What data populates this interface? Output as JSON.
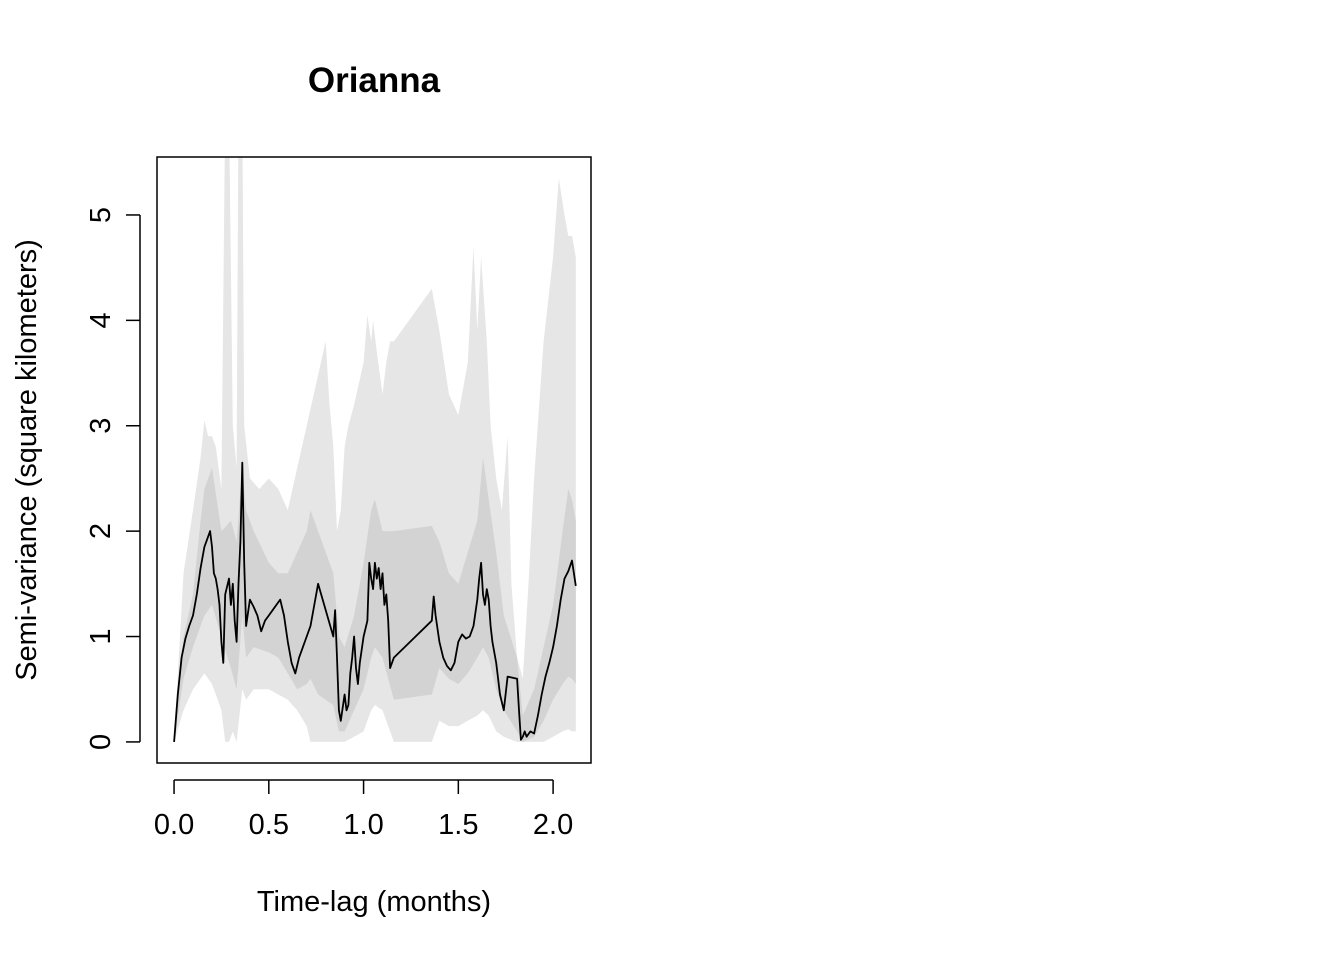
{
  "chart_data": {
    "type": "line",
    "title": "Orianna",
    "xlabel": "Time-lag (months)",
    "ylabel": "Semi-variance (square kilometers)",
    "xlim": [
      -0.09,
      2.2
    ],
    "ylim": [
      -0.2,
      5.55
    ],
    "x_ticks": [
      0.0,
      0.5,
      1.0,
      1.5,
      2.0
    ],
    "x_tick_labels": [
      "0.0",
      "0.5",
      "1.0",
      "1.5",
      "2.0"
    ],
    "y_ticks": [
      0,
      1,
      2,
      3,
      4,
      5
    ],
    "y_tick_labels": [
      "0",
      "1",
      "2",
      "3",
      "4",
      "5"
    ],
    "grid": false,
    "legend": "none",
    "colors": {
      "line": "#000000",
      "inner_band": "#d3d3d3",
      "outer_band": "#e6e6e6",
      "axes": "#000000"
    },
    "series": [
      {
        "role": "estimate",
        "x": [
          0.0,
          0.02,
          0.04,
          0.06,
          0.08,
          0.1,
          0.12,
          0.14,
          0.16,
          0.18,
          0.19,
          0.2,
          0.21,
          0.22,
          0.23,
          0.24,
          0.25,
          0.26,
          0.27,
          0.29,
          0.3,
          0.31,
          0.32,
          0.33,
          0.34,
          0.35,
          0.36,
          0.37,
          0.38,
          0.4,
          0.42,
          0.44,
          0.46,
          0.48,
          0.5,
          0.52,
          0.54,
          0.56,
          0.58,
          0.6,
          0.62,
          0.64,
          0.66,
          0.68,
          0.7,
          0.72,
          0.74,
          0.76,
          0.84,
          0.85,
          0.86,
          0.87,
          0.88,
          0.9,
          0.91,
          0.92,
          0.93,
          0.94,
          0.95,
          0.96,
          0.97,
          0.98,
          1.0,
          1.02,
          1.03,
          1.04,
          1.05,
          1.06,
          1.07,
          1.08,
          1.09,
          1.1,
          1.11,
          1.12,
          1.13,
          1.14,
          1.16,
          1.36,
          1.37,
          1.38,
          1.4,
          1.42,
          1.44,
          1.46,
          1.48,
          1.5,
          1.52,
          1.54,
          1.56,
          1.58,
          1.6,
          1.61,
          1.62,
          1.63,
          1.64,
          1.65,
          1.66,
          1.67,
          1.68,
          1.7,
          1.72,
          1.74,
          1.76,
          1.81,
          1.82,
          1.83,
          1.84,
          1.85,
          1.86,
          1.88,
          1.9,
          1.92,
          1.94,
          1.96,
          1.98,
          2.0,
          2.02,
          2.04,
          2.06,
          2.08,
          2.1,
          2.12
        ],
        "y": [
          0.0,
          0.45,
          0.8,
          0.98,
          1.1,
          1.2,
          1.4,
          1.65,
          1.85,
          1.95,
          2.0,
          1.85,
          1.6,
          1.55,
          1.45,
          1.3,
          0.95,
          0.75,
          1.4,
          1.55,
          1.3,
          1.5,
          1.15,
          0.95,
          1.5,
          1.9,
          2.65,
          1.7,
          1.1,
          1.35,
          1.28,
          1.2,
          1.05,
          1.15,
          1.2,
          1.25,
          1.3,
          1.35,
          1.2,
          0.95,
          0.75,
          0.65,
          0.8,
          0.9,
          1.0,
          1.1,
          1.3,
          1.5,
          1.0,
          1.25,
          0.8,
          0.3,
          0.2,
          0.45,
          0.3,
          0.35,
          0.65,
          0.8,
          1.0,
          0.7,
          0.55,
          0.75,
          1.0,
          1.15,
          1.7,
          1.55,
          1.45,
          1.7,
          1.55,
          1.65,
          1.45,
          1.6,
          1.3,
          1.4,
          1.15,
          0.7,
          0.8,
          1.15,
          1.38,
          1.2,
          0.95,
          0.8,
          0.72,
          0.68,
          0.75,
          0.95,
          1.02,
          0.98,
          1.0,
          1.1,
          1.35,
          1.55,
          1.7,
          1.4,
          1.3,
          1.45,
          1.35,
          1.1,
          0.95,
          0.75,
          0.45,
          0.3,
          0.62,
          0.6,
          0.3,
          0.02,
          0.05,
          0.1,
          0.05,
          0.1,
          0.08,
          0.25,
          0.45,
          0.62,
          0.75,
          0.9,
          1.1,
          1.35,
          1.55,
          1.62,
          1.72,
          1.48
        ]
      },
      {
        "role": "inner_band_upper",
        "x": [
          0.0,
          0.05,
          0.1,
          0.14,
          0.16,
          0.2,
          0.25,
          0.3,
          0.33,
          0.36,
          0.38,
          0.42,
          0.5,
          0.55,
          0.6,
          0.65,
          0.7,
          0.72,
          0.76,
          0.84,
          0.87,
          0.9,
          0.95,
          1.0,
          1.04,
          1.06,
          1.1,
          1.16,
          1.36,
          1.4,
          1.45,
          1.5,
          1.55,
          1.6,
          1.63,
          1.66,
          1.7,
          1.74,
          1.81,
          1.84,
          1.9,
          1.95,
          2.0,
          2.05,
          2.08,
          2.1,
          2.12
        ],
        "y": [
          0.0,
          1.0,
          1.4,
          2.1,
          2.4,
          2.6,
          2.0,
          2.1,
          1.9,
          2.6,
          2.2,
          2.0,
          1.7,
          1.6,
          1.6,
          1.8,
          2.0,
          2.2,
          2.0,
          1.6,
          1.0,
          0.9,
          1.2,
          1.7,
          2.2,
          2.3,
          2.0,
          2.0,
          2.05,
          1.9,
          1.6,
          1.5,
          1.8,
          2.1,
          2.7,
          2.3,
          1.8,
          1.2,
          0.8,
          0.25,
          0.5,
          0.9,
          1.3,
          2.0,
          2.4,
          2.3,
          2.1
        ]
      },
      {
        "role": "inner_band_lower",
        "x": [
          0.0,
          0.05,
          0.1,
          0.14,
          0.16,
          0.2,
          0.25,
          0.3,
          0.33,
          0.36,
          0.38,
          0.42,
          0.5,
          0.55,
          0.6,
          0.65,
          0.7,
          0.72,
          0.76,
          0.84,
          0.87,
          0.9,
          0.95,
          1.0,
          1.04,
          1.06,
          1.1,
          1.16,
          1.36,
          1.4,
          1.45,
          1.5,
          1.55,
          1.6,
          1.63,
          1.66,
          1.7,
          1.74,
          1.81,
          1.84,
          1.9,
          1.95,
          2.0,
          2.05,
          2.08,
          2.1,
          2.12
        ],
        "y": [
          0.0,
          0.6,
          0.9,
          1.1,
          1.2,
          1.3,
          1.0,
          0.7,
          0.5,
          1.2,
          0.8,
          0.9,
          0.85,
          0.8,
          0.65,
          0.5,
          0.55,
          0.6,
          0.45,
          0.35,
          0.1,
          0.1,
          0.3,
          0.5,
          0.8,
          0.9,
          0.8,
          0.4,
          0.45,
          0.7,
          0.6,
          0.55,
          0.65,
          0.8,
          0.9,
          0.8,
          0.5,
          0.3,
          0.1,
          0.0,
          0.05,
          0.2,
          0.4,
          0.55,
          0.62,
          0.6,
          0.55
        ]
      },
      {
        "role": "outer_band_upper",
        "x": [
          0.0,
          0.05,
          0.1,
          0.14,
          0.16,
          0.18,
          0.2,
          0.22,
          0.25,
          0.27,
          0.29,
          0.31,
          0.33,
          0.34,
          0.36,
          0.37,
          0.4,
          0.45,
          0.5,
          0.55,
          0.6,
          0.65,
          0.7,
          0.75,
          0.8,
          0.82,
          0.84,
          0.86,
          0.88,
          0.9,
          0.92,
          0.95,
          1.0,
          1.02,
          1.04,
          1.05,
          1.07,
          1.1,
          1.12,
          1.14,
          1.16,
          1.36,
          1.4,
          1.45,
          1.5,
          1.55,
          1.58,
          1.6,
          1.62,
          1.65,
          1.67,
          1.7,
          1.73,
          1.76,
          1.78,
          1.81,
          1.84,
          1.87,
          1.9,
          1.95,
          2.0,
          2.03,
          2.06,
          2.08,
          2.1,
          2.12
        ],
        "y": [
          0.0,
          1.6,
          2.2,
          2.7,
          3.05,
          2.9,
          2.9,
          2.8,
          2.4,
          6.0,
          6.0,
          3.0,
          2.6,
          6.0,
          6.0,
          3.0,
          2.5,
          2.4,
          2.5,
          2.4,
          2.2,
          2.6,
          3.0,
          3.4,
          3.8,
          3.2,
          2.8,
          2.0,
          2.2,
          2.8,
          3.0,
          3.2,
          3.6,
          4.05,
          3.8,
          4.0,
          3.7,
          3.3,
          3.6,
          3.8,
          3.8,
          4.3,
          3.9,
          3.3,
          3.1,
          3.6,
          4.7,
          3.9,
          4.6,
          3.8,
          3.0,
          2.5,
          2.2,
          2.9,
          1.5,
          0.8,
          0.6,
          1.5,
          2.5,
          3.8,
          4.6,
          5.35,
          5.0,
          4.8,
          4.8,
          4.6
        ]
      },
      {
        "role": "outer_band_lower",
        "x": [
          0.0,
          0.05,
          0.1,
          0.14,
          0.16,
          0.2,
          0.25,
          0.27,
          0.29,
          0.31,
          0.33,
          0.36,
          0.38,
          0.42,
          0.5,
          0.55,
          0.6,
          0.65,
          0.7,
          0.72,
          0.76,
          0.84,
          0.87,
          0.9,
          0.95,
          1.0,
          1.04,
          1.06,
          1.1,
          1.16,
          1.36,
          1.4,
          1.45,
          1.5,
          1.55,
          1.6,
          1.63,
          1.66,
          1.7,
          1.74,
          1.81,
          1.84,
          1.9,
          1.95,
          2.0,
          2.05,
          2.08,
          2.1,
          2.12
        ],
        "y": [
          0.0,
          0.3,
          0.5,
          0.6,
          0.65,
          0.55,
          0.3,
          0.0,
          0.0,
          0.1,
          0.0,
          0.5,
          0.4,
          0.5,
          0.5,
          0.45,
          0.4,
          0.3,
          0.15,
          0.0,
          0.0,
          0.0,
          0.0,
          0.0,
          0.05,
          0.1,
          0.3,
          0.35,
          0.3,
          0.0,
          0.0,
          0.2,
          0.15,
          0.15,
          0.2,
          0.25,
          0.3,
          0.25,
          0.1,
          0.05,
          0.0,
          0.0,
          0.0,
          0.0,
          0.05,
          0.1,
          0.12,
          0.1,
          0.1
        ]
      }
    ]
  }
}
